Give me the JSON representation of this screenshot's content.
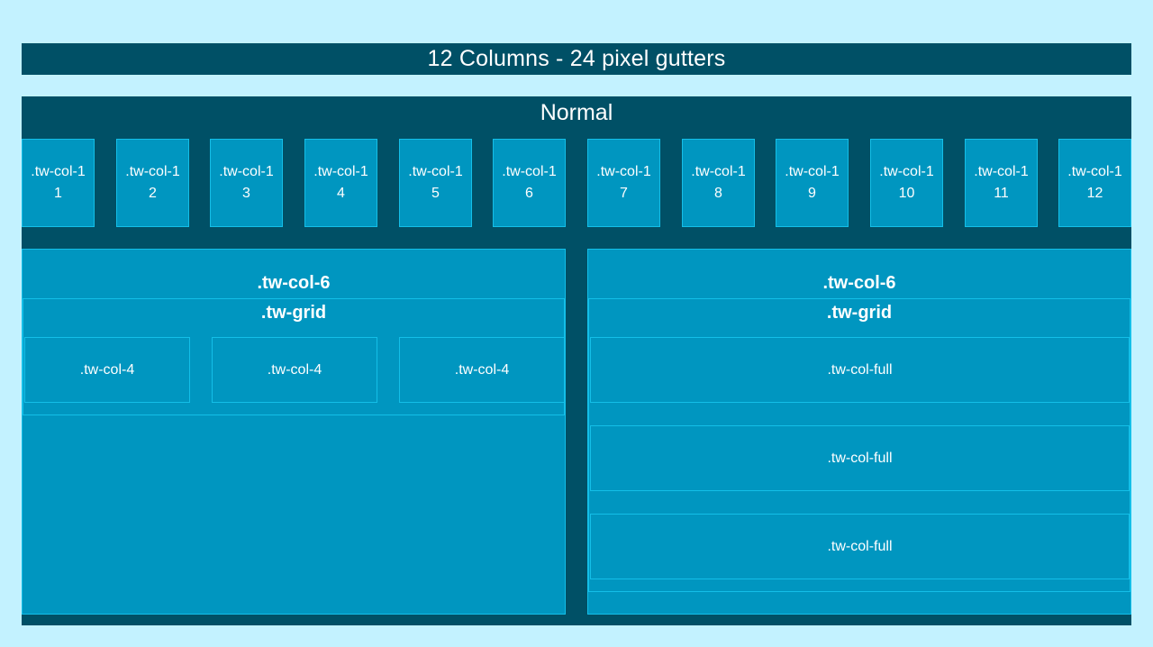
{
  "header": {
    "title": "12 Columns - 24 pixel gutters"
  },
  "section": {
    "title": "Normal",
    "col1_items": [
      {
        "class_label": ".tw-col-1",
        "number": "1"
      },
      {
        "class_label": ".tw-col-1",
        "number": "2"
      },
      {
        "class_label": ".tw-col-1",
        "number": "3"
      },
      {
        "class_label": ".tw-col-1",
        "number": "4"
      },
      {
        "class_label": ".tw-col-1",
        "number": "5"
      },
      {
        "class_label": ".tw-col-1",
        "number": "6"
      },
      {
        "class_label": ".tw-col-1",
        "number": "7"
      },
      {
        "class_label": ".tw-col-1",
        "number": "8"
      },
      {
        "class_label": ".tw-col-1",
        "number": "9"
      },
      {
        "class_label": ".tw-col-1",
        "number": "10"
      },
      {
        "class_label": ".tw-col-1",
        "number": "11"
      },
      {
        "class_label": ".tw-col-1",
        "number": "12"
      }
    ],
    "left": {
      "title": ".tw-col-6",
      "grid_title": ".tw-grid",
      "cells": [
        ".tw-col-4",
        ".tw-col-4",
        ".tw-col-4"
      ]
    },
    "right": {
      "title": ".tw-col-6",
      "grid_title": ".tw-grid",
      "cells": [
        ".tw-col-full",
        ".tw-col-full",
        ".tw-col-full"
      ]
    }
  },
  "colors": {
    "page_background": "#c3f2ff",
    "dark_panel": "#005066",
    "column_fill": "#0096c0",
    "column_border": "#14bfe8"
  }
}
